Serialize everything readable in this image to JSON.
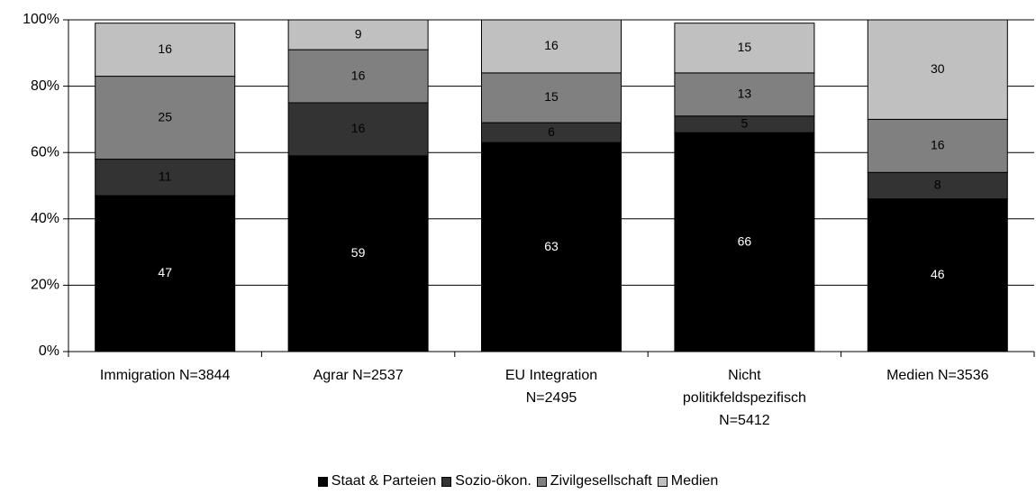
{
  "chart_data": {
    "type": "stacked_bar",
    "categories": [
      "Immigration N=3844",
      "Agrar N=2537",
      "EU Integration\nN=2495",
      "Nicht\npolitikfeldspezifisch\nN=5412",
      "Medien N=3536"
    ],
    "series": [
      {
        "name": "Staat & Parteien",
        "color": "#000000",
        "label_color": "#ffffff",
        "values": [
          47,
          59,
          63,
          66,
          46
        ]
      },
      {
        "name": "Sozio-ökon.",
        "color": "#333333",
        "label_color": "#000000",
        "values": [
          11,
          16,
          6,
          5,
          8
        ]
      },
      {
        "name": "Zivilgesellschaft",
        "color": "#808080",
        "label_color": "#000000",
        "values": [
          25,
          16,
          15,
          13,
          16
        ]
      },
      {
        "name": "Medien",
        "color": "#c0c0c0",
        "label_color": "#000000",
        "values": [
          16,
          9,
          16,
          15,
          30
        ]
      }
    ],
    "ylim": [
      0,
      100
    ],
    "yticks": [
      {
        "value": 0,
        "label": "0%"
      },
      {
        "value": 20,
        "label": "20%"
      },
      {
        "value": 40,
        "label": "40%"
      },
      {
        "value": 60,
        "label": "60%"
      },
      {
        "value": 80,
        "label": "80%"
      },
      {
        "value": 100,
        "label": "100%"
      }
    ],
    "grid": true
  }
}
